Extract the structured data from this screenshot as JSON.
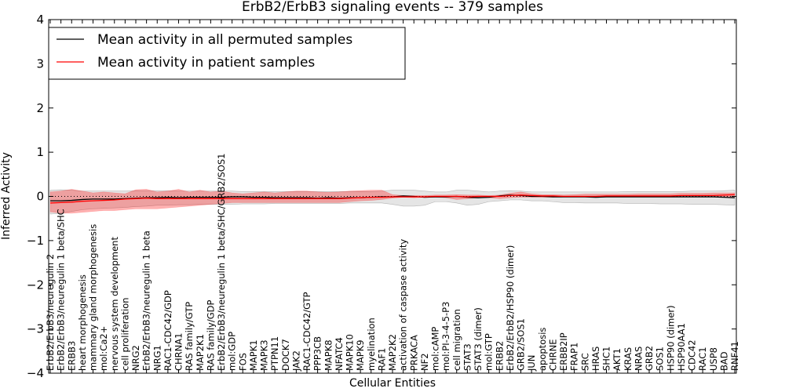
{
  "chart_data": {
    "type": "line",
    "title": "ErbB2/ErbB3 signaling events -- 379 samples",
    "xlabel": "Cellular Entities",
    "ylabel": "Inferred Activity",
    "ylim": [
      -4,
      4
    ],
    "yticks": [
      -4,
      -3,
      -2,
      -1,
      0,
      1,
      2,
      3,
      4
    ],
    "grid": false,
    "legend_position": "top-left",
    "reference_line": {
      "y": 0,
      "style": "dotted"
    },
    "categories": [
      "ErbB2/ErbB3/neuregulin 2",
      "ErbB2/ErbB3/neuregulin 1 beta/SHC",
      "ERBB3",
      "heart morphogenesis",
      "mammary gland morphogenesis",
      "mol:Ca2+",
      "nervous system development",
      "cell proliferation",
      "NRG2",
      "ErbB2/ErbB3/neuregulin 1 beta",
      "NRG1",
      "RAC1-CDC42/GDP",
      "CHRNA1",
      "RAS family/GTP",
      "MAP2K1",
      "RAS family/GDP",
      "ErbB2/ErbB3/neuregulin 1 beta/SHC/GRB2/SOS1",
      "mol:GDP",
      "FOS",
      "MAPK1",
      "MAPK3",
      "PTPN11",
      "DOCK7",
      "JAK2",
      "RAC1-CDC42/GTP",
      "PPP3CB",
      "MAPK8",
      "NFATC4",
      "MAPK10",
      "MAPK9",
      "myelination",
      "RAF1",
      "MAP2K2",
      "activation of caspase activity",
      "PRKACA",
      "NF2",
      "mol:cAMP",
      "mol:PI-3-4-5-P3",
      "cell migration",
      "STAT3",
      "STAT3 (dimer)",
      "mol:GTP",
      "ERBB2",
      "ErbB2/ErbB2/HSP90 (dimer)",
      "GRB2/SOS1",
      "JUN",
      "apoptosis",
      "CHRNE",
      "ERBB2IP",
      "FRAP1",
      "SRC",
      "HRAS",
      "SHC1",
      "AKT1",
      "KRAS",
      "NRAS",
      "GRB2",
      "SOS1",
      "HSP90 (dimer)",
      "HSP90AA1",
      "CDC42",
      "RAC1",
      "USP8",
      "BAD",
      "RNF41"
    ],
    "series": [
      {
        "name": "Mean activity in all permuted samples",
        "color": "#000000",
        "values": [
          -0.1,
          -0.1,
          -0.09,
          -0.07,
          -0.06,
          -0.06,
          -0.06,
          -0.05,
          -0.04,
          -0.03,
          -0.03,
          -0.02,
          -0.03,
          -0.02,
          -0.02,
          -0.02,
          -0.02,
          -0.01,
          -0.01,
          -0.02,
          -0.02,
          -0.03,
          -0.03,
          -0.03,
          -0.03,
          -0.04,
          -0.03,
          -0.04,
          -0.03,
          -0.03,
          -0.02,
          -0.01,
          -0.01,
          0.01,
          0.0,
          -0.02,
          -0.01,
          -0.01,
          0.0,
          -0.02,
          -0.03,
          -0.02,
          0.01,
          0.03,
          0.02,
          0.0,
          0.0,
          -0.01,
          -0.01,
          -0.01,
          -0.01,
          -0.02,
          -0.01,
          -0.01,
          -0.01,
          -0.01,
          -0.01,
          -0.01,
          -0.01,
          -0.01,
          -0.01,
          -0.01,
          -0.01,
          -0.02,
          -0.03
        ],
        "lower": [
          -0.4,
          -0.38,
          -0.34,
          -0.3,
          -0.28,
          -0.27,
          -0.26,
          -0.25,
          -0.23,
          -0.22,
          -0.2,
          -0.2,
          -0.19,
          -0.19,
          -0.18,
          -0.18,
          -0.18,
          -0.18,
          -0.17,
          -0.17,
          -0.17,
          -0.16,
          -0.16,
          -0.16,
          -0.16,
          -0.16,
          -0.16,
          -0.16,
          -0.15,
          -0.15,
          -0.15,
          -0.15,
          -0.18,
          -0.22,
          -0.22,
          -0.2,
          -0.12,
          -0.12,
          -0.15,
          -0.2,
          -0.18,
          -0.12,
          -0.1,
          -0.08,
          -0.08,
          -0.1,
          -0.1,
          -0.12,
          -0.14,
          -0.14,
          -0.15,
          -0.15,
          -0.15,
          -0.15,
          -0.16,
          -0.16,
          -0.16,
          -0.17,
          -0.17,
          -0.17,
          -0.18,
          -0.18,
          -0.18,
          -0.19,
          -0.2
        ],
        "upper": [
          0.14,
          0.15,
          0.14,
          0.12,
          0.12,
          0.12,
          0.12,
          0.12,
          0.13,
          0.13,
          0.13,
          0.13,
          0.12,
          0.12,
          0.12,
          0.12,
          0.12,
          0.12,
          0.11,
          0.11,
          0.11,
          0.11,
          0.11,
          0.11,
          0.11,
          0.11,
          0.11,
          0.11,
          0.11,
          0.11,
          0.11,
          0.12,
          0.14,
          0.14,
          0.14,
          0.12,
          0.1,
          0.1,
          0.14,
          0.14,
          0.12,
          0.1,
          0.12,
          0.13,
          0.12,
          0.1,
          0.1,
          0.1,
          0.1,
          0.1,
          0.1,
          0.1,
          0.1,
          0.1,
          0.11,
          0.11,
          0.11,
          0.11,
          0.11,
          0.11,
          0.12,
          0.12,
          0.12,
          0.13,
          0.14
        ]
      },
      {
        "name": "Mean activity in patient samples",
        "color": "#ff0000",
        "values": [
          -0.15,
          -0.14,
          -0.13,
          -0.11,
          -0.1,
          -0.09,
          -0.08,
          -0.06,
          -0.05,
          -0.04,
          -0.05,
          -0.05,
          -0.05,
          -0.05,
          -0.05,
          -0.05,
          -0.05,
          -0.05,
          -0.05,
          -0.05,
          -0.05,
          -0.05,
          -0.05,
          -0.05,
          -0.05,
          -0.05,
          -0.05,
          -0.05,
          -0.04,
          -0.03,
          -0.02,
          -0.02,
          -0.01,
          -0.01,
          -0.01,
          -0.01,
          0.0,
          0.0,
          0.0,
          -0.01,
          0.0,
          0.0,
          0.0,
          0.02,
          0.03,
          0.02,
          0.01,
          0.01,
          0.0,
          0.0,
          0.0,
          0.0,
          0.01,
          0.01,
          0.01,
          0.01,
          0.01,
          0.01,
          0.01,
          0.02,
          0.02,
          0.02,
          0.02,
          0.03,
          0.04
        ],
        "lower": [
          -0.35,
          -0.38,
          -0.38,
          -0.36,
          -0.34,
          -0.32,
          -0.32,
          -0.3,
          -0.28,
          -0.28,
          -0.28,
          -0.26,
          -0.24,
          -0.22,
          -0.2,
          -0.18,
          -0.16,
          -0.14,
          -0.14,
          -0.14,
          -0.14,
          -0.14,
          -0.14,
          -0.14,
          -0.14,
          -0.14,
          -0.14,
          -0.14,
          -0.12,
          -0.1,
          -0.09,
          -0.07,
          -0.04,
          -0.02,
          -0.03,
          -0.02,
          -0.02,
          -0.03,
          -0.07,
          -0.05,
          -0.03,
          -0.03,
          -0.05,
          -0.03,
          -0.02,
          -0.02,
          -0.02,
          -0.02,
          -0.01,
          -0.01,
          -0.01,
          -0.01,
          -0.01,
          -0.01,
          -0.01,
          -0.01,
          -0.01,
          -0.01,
          -0.01,
          -0.01,
          -0.01,
          -0.01,
          -0.01,
          -0.01,
          -0.01
        ],
        "upper": [
          0.1,
          0.12,
          0.16,
          0.12,
          0.08,
          0.1,
          0.08,
          0.06,
          0.15,
          0.16,
          0.1,
          0.12,
          0.16,
          0.1,
          0.14,
          0.1,
          0.12,
          0.08,
          0.06,
          0.08,
          0.1,
          0.08,
          0.1,
          0.12,
          0.12,
          0.1,
          0.09,
          0.1,
          0.12,
          0.13,
          0.14,
          0.14,
          0.04,
          0.02,
          0.02,
          0.02,
          0.03,
          0.03,
          0.04,
          0.03,
          0.03,
          0.02,
          0.03,
          0.07,
          0.1,
          0.06,
          0.04,
          0.04,
          0.03,
          0.04,
          0.05,
          0.05,
          0.05,
          0.05,
          0.05,
          0.06,
          0.06,
          0.06,
          0.06,
          0.07,
          0.07,
          0.07,
          0.08,
          0.08,
          0.08
        ]
      }
    ]
  }
}
